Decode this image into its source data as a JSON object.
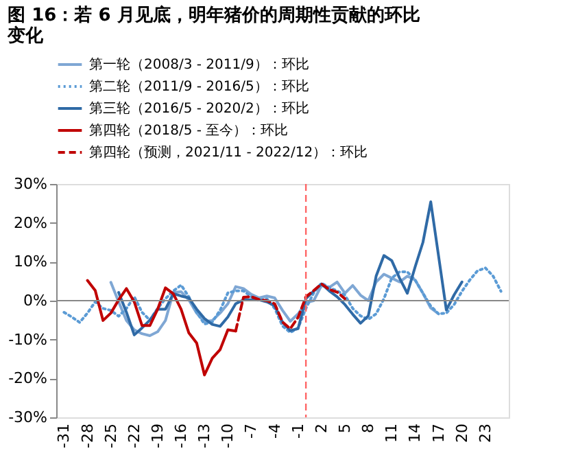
{
  "chart_data": {
    "type": "line",
    "title": "图 16：若 6 月见底，明年猪价的周期性贡献的环比变化",
    "xlim": [
      -32,
      26
    ],
    "xticks": [
      -31,
      -28,
      -25,
      -22,
      -19,
      -16,
      -13,
      -10,
      -7,
      -4,
      -1,
      2,
      5,
      8,
      11,
      14,
      17,
      20,
      23
    ],
    "ylim": [
      -30,
      30
    ],
    "yticks": [
      {
        "value": -30,
        "label": "-30%"
      },
      {
        "value": -20,
        "label": "-20%"
      },
      {
        "value": -10,
        "label": "-10%"
      },
      {
        "value": 0,
        "label": "0%"
      },
      {
        "value": 10,
        "label": "10%"
      },
      {
        "value": 20,
        "label": "20%"
      },
      {
        "value": 30,
        "label": "30%"
      }
    ],
    "legend": "top",
    "ref_lines": [
      {
        "axis": "x",
        "value": 0,
        "color": "#ff6666",
        "line_style": "dashed"
      }
    ],
    "series": [
      {
        "name": "第一轮（2008/3 - 2011/9）：环比",
        "color": "#7fa7d4",
        "line_style": "solid",
        "x": [
          -25,
          -24,
          -23,
          -22,
          -21,
          -20,
          -19,
          -18,
          -17,
          -16,
          -15,
          -14,
          -13,
          -12,
          -11,
          -10,
          -9,
          -8,
          -7,
          -6,
          -5,
          -4,
          -3,
          -2,
          -1,
          0,
          1,
          2,
          3,
          4,
          5,
          6,
          7,
          8,
          9,
          10,
          11,
          12,
          13,
          14,
          15,
          16,
          17
        ],
        "values": [
          4.7,
          -0.3,
          -5.1,
          -7.5,
          -8.5,
          -9,
          -8,
          -5.1,
          2.1,
          2.3,
          0.2,
          -3.2,
          -5.4,
          -5.1,
          -3.2,
          -0.8,
          3.6,
          3.1,
          1.6,
          0.7,
          1.2,
          0.7,
          -2.5,
          -5.3,
          -3.4,
          -0.5,
          0,
          3.9,
          3.4,
          4.8,
          1.9,
          3.9,
          1.4,
          0,
          4.8,
          6.8,
          5.8,
          4.8,
          6.3,
          5.3,
          1.9,
          -1.9,
          -3.4
        ]
      },
      {
        "name": "第二轮（2011/9 - 2016/5）：环比",
        "color": "#5b9bd5",
        "line_style": "dotted",
        "x": [
          -31,
          -30,
          -29,
          -28,
          -27,
          -26,
          -25,
          -24,
          -23,
          -22,
          -21,
          -20,
          -19,
          -18,
          -17,
          -16,
          -15,
          -14,
          -13,
          -12,
          -11,
          -10,
          -9,
          -8,
          -7,
          -6,
          -5,
          -4,
          -3,
          -2,
          -1,
          0,
          1,
          2,
          3,
          4,
          5,
          6,
          7,
          8,
          9,
          10,
          11,
          12,
          13,
          14,
          15,
          16,
          17,
          18,
          19,
          20,
          21,
          22,
          23,
          24,
          25
        ],
        "values": [
          -3,
          -4.2,
          -5.6,
          -3.2,
          -0.3,
          -2,
          -2.5,
          -4,
          -2,
          1,
          -3,
          -5,
          -2,
          0.5,
          2.5,
          4,
          1,
          -3,
          -6,
          -5.5,
          -2.5,
          2,
          2.5,
          2.5,
          1,
          0,
          0.5,
          -2,
          -6.5,
          -8.2,
          -7,
          -2,
          2,
          4.5,
          3.4,
          2.5,
          1.4,
          -2,
          -3.9,
          -4.8,
          -3.4,
          0.5,
          5.8,
          7.4,
          7.4,
          5.3,
          1.9,
          -1.4,
          -3.4,
          -3.2,
          -1,
          2.4,
          5.3,
          7.7,
          8.4,
          6.3,
          2.4
        ]
      },
      {
        "name": "第三轮（2016/5 - 2020/2）：环比",
        "color": "#2f6aa6",
        "line_style": "solid",
        "x": [
          -24,
          -23,
          -22,
          -21,
          -20,
          -19,
          -18,
          -17,
          -16,
          -15,
          -14,
          -13,
          -12,
          -11,
          -10,
          -9,
          -8,
          -7,
          -6,
          -5,
          -4,
          -3,
          -2,
          -1,
          0,
          1,
          2,
          3,
          4,
          5,
          6,
          7,
          8,
          9,
          10,
          11,
          12,
          13,
          14,
          15,
          16,
          17,
          18,
          19,
          20
        ],
        "values": [
          2.1,
          -3,
          -8.8,
          -7,
          -5,
          -2.2,
          -2.2,
          1.8,
          1.2,
          0.7,
          -2.2,
          -4.6,
          -6.1,
          -6.6,
          -4.2,
          -0.8,
          0.2,
          0.2,
          0.2,
          -0.3,
          -1.3,
          -5.5,
          -7.7,
          -7.2,
          0.5,
          2.5,
          4.3,
          2.5,
          1,
          -1,
          -3.5,
          -5.8,
          -3.9,
          6.3,
          11.6,
          10.3,
          5.8,
          1.9,
          8.7,
          15,
          25.4,
          11.5,
          -2.4,
          1.5,
          4.8
        ]
      },
      {
        "name": "第四轮（2018/5 - 至今）：环比",
        "color": "#c00000",
        "line_style": "solid",
        "x": [
          -28,
          -27,
          -26,
          -25,
          -24,
          -23,
          -22,
          -21,
          -20,
          -19,
          -18,
          -17,
          -16,
          -15,
          -14,
          -13,
          -12,
          -11,
          -10,
          -9
        ],
        "values": [
          5.2,
          2.6,
          -5.1,
          -3.2,
          0.2,
          3.1,
          -0.3,
          -6.4,
          -6.4,
          -2.2,
          3.3,
          1.8,
          -2.2,
          -8.3,
          -10.9,
          -19.1,
          -14.8,
          -12.6,
          -7.5,
          -7.8
        ]
      },
      {
        "name": "第四轮（预测，2021/11 - 2022/12）：环比",
        "color": "#c00000",
        "line_style": "dashed",
        "x": [
          -9,
          -8,
          -7,
          -6,
          -5,
          -4,
          -3,
          -2,
          -1,
          0,
          1,
          2,
          3,
          4,
          5
        ],
        "values": [
          -7.8,
          0.9,
          1.0,
          0.3,
          0,
          -0.8,
          -5.5,
          -7.2,
          -4.3,
          1.0,
          2.6,
          4.3,
          2.9,
          2.2,
          0.5
        ]
      }
    ]
  }
}
